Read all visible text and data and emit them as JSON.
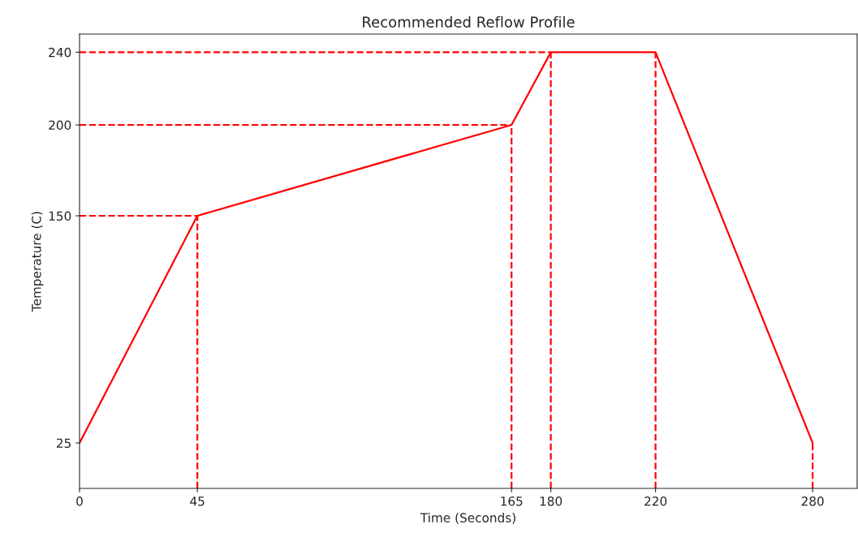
{
  "chart_data": {
    "type": "line",
    "title": "Recommended Reflow Profile",
    "xlabel": "Time (Seconds)",
    "ylabel": "Temperature (C)",
    "xlim": [
      0,
      297
    ],
    "ylim": [
      0,
      250
    ],
    "xticks": [
      0,
      45,
      165,
      180,
      220,
      280
    ],
    "yticks": [
      25,
      150,
      200,
      240
    ],
    "grid": false,
    "legend": false,
    "series": [
      {
        "color": "#ff0000",
        "x": [
          0,
          45,
          165,
          180,
          220,
          280
        ],
        "values": [
          25,
          150,
          200,
          240,
          240,
          25
        ],
        "line_style": "solid"
      },
      {
        "color": "#ff0000",
        "x": [
          0,
          45
        ],
        "values": [
          150,
          150
        ],
        "line_style": "dashed"
      },
      {
        "color": "#ff0000",
        "x": [
          0,
          165
        ],
        "values": [
          200,
          200
        ],
        "line_style": "dashed"
      },
      {
        "color": "#ff0000",
        "x": [
          0,
          180
        ],
        "values": [
          240,
          240
        ],
        "line_style": "dashed"
      },
      {
        "color": "#ff0000",
        "x": [
          45,
          45
        ],
        "values": [
          0,
          150
        ],
        "line_style": "dashed"
      },
      {
        "color": "#ff0000",
        "x": [
          165,
          165
        ],
        "values": [
          0,
          200
        ],
        "line_style": "dashed"
      },
      {
        "color": "#ff0000",
        "x": [
          180,
          180
        ],
        "values": [
          0,
          240
        ],
        "line_style": "dashed"
      },
      {
        "color": "#ff0000",
        "x": [
          220,
          220
        ],
        "values": [
          0,
          240
        ],
        "line_style": "dashed"
      },
      {
        "color": "#ff0000",
        "x": [
          280,
          280
        ],
        "values": [
          0,
          25
        ],
        "line_style": "dashed"
      }
    ]
  }
}
